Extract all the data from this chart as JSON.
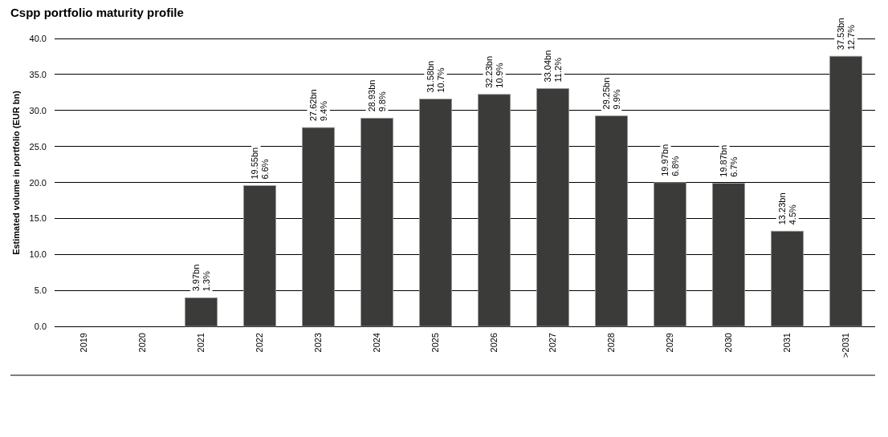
{
  "chart_data": {
    "type": "bar",
    "title": "Cspp portfolio maturity profile",
    "ylabel": "Estimated volume in portfolio (EUR bn)",
    "categories": [
      "2019",
      "2020",
      "2021",
      "2022",
      "2023",
      "2024",
      "2025",
      "2026",
      "2027",
      "2028",
      "2029",
      "2030",
      "2031",
      ">2031"
    ],
    "values": [
      null,
      null,
      3.97,
      19.55,
      27.62,
      28.93,
      31.58,
      32.23,
      33.04,
      29.25,
      19.97,
      19.87,
      13.23,
      37.53
    ],
    "color": "#3b3c3a",
    "value_labels": [
      null,
      null,
      "3.97bn",
      "19.55bn",
      "27.62bn",
      "28.93bn",
      "31.58bn",
      "32.23bn",
      "33.04bn",
      "29.25bn",
      "19.97bn",
      "19.87bn",
      "13.23bn",
      "37.53bn"
    ],
    "annotations": [
      {
        "text": "1.3%",
        "x": "2021",
        "y": 3.97
      },
      {
        "text": "6.6%",
        "x": "2022",
        "y": 19.55
      },
      {
        "text": "9.4%",
        "x": "2023",
        "y": 27.62
      },
      {
        "text": "9.8%",
        "x": "2024",
        "y": 28.93
      },
      {
        "text": "10.7%",
        "x": "2025",
        "y": 31.58
      },
      {
        "text": "10.9%",
        "x": "2026",
        "y": 32.23
      },
      {
        "text": "11.2%",
        "x": "2027",
        "y": 33.04
      },
      {
        "text": "9.9%",
        "x": "2028",
        "y": 29.25
      },
      {
        "text": "6.8%",
        "x": "2029",
        "y": 19.97
      },
      {
        "text": "6.7%",
        "x": "2030",
        "y": 19.87
      },
      {
        "text": "4.5%",
        "x": "2031",
        "y": 13.23
      },
      {
        "text": "12.7%",
        "x": ">2031",
        "y": 37.53
      }
    ],
    "ylim": [
      0,
      40
    ],
    "yticks": [
      {
        "value": 0,
        "label": "0.0"
      },
      {
        "value": 5,
        "label": "5.0"
      },
      {
        "value": 10,
        "label": "10.0"
      },
      {
        "value": 15,
        "label": "15.0"
      },
      {
        "value": 20,
        "label": "20.0"
      },
      {
        "value": 25,
        "label": "25.0"
      },
      {
        "value": 30,
        "label": "30.0"
      },
      {
        "value": 35,
        "label": "35.0"
      },
      {
        "value": 40,
        "label": "40.0"
      }
    ],
    "grid": "y"
  }
}
